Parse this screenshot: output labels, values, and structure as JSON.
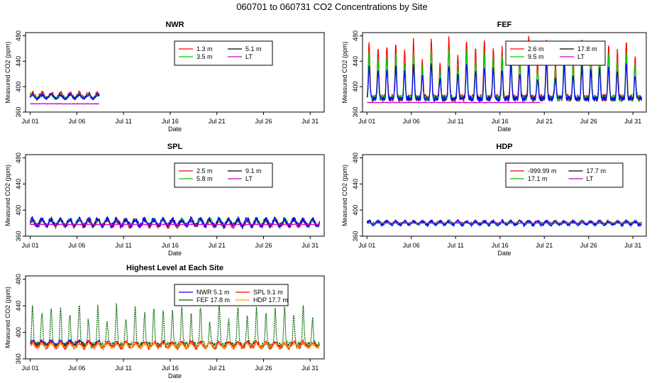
{
  "page_title": "060701  to  060731 CO2 Concentrations by Site",
  "chart_data": [
    {
      "type": "line",
      "title": "NWR",
      "xlabel": "Date",
      "ylabel": "Measured CO2 (ppm)",
      "ylim": [
        360,
        485
      ],
      "yticks": [
        360,
        400,
        440,
        480
      ],
      "x_tick_labels": [
        "Jul 01",
        "Jul 06",
        "Jul 11",
        "Jul 16",
        "Jul 21",
        "Jul 26",
        "Jul 31"
      ],
      "legend": "top-right",
      "legend_entries": [
        {
          "label": "1.3 m",
          "color": "#ff0000"
        },
        {
          "label": "5.1 m",
          "color": "#000000"
        },
        {
          "label": "3.5 m",
          "color": "#00cc00"
        },
        {
          "label": "LT",
          "color": "#cc00cc"
        }
      ],
      "series": [
        {
          "name": "1.3 m",
          "color": "#ff0000",
          "x_range": [
            1,
            8.4
          ],
          "base": 386,
          "amp": 4,
          "noise": 3
        },
        {
          "name": "3.5 m",
          "color": "#00cc00",
          "x_range": [
            1,
            8.4
          ],
          "base": 385,
          "amp": 3,
          "noise": 2
        },
        {
          "name": "5.1 m",
          "color": "#0000ff",
          "x_range": [
            1,
            8.4
          ],
          "base": 384,
          "amp": 3,
          "noise": 2
        },
        {
          "name": "LT",
          "color": "#cc00cc",
          "x_range": [
            1,
            8.4
          ],
          "base": 373,
          "amp": 0,
          "noise": 0.4
        }
      ]
    },
    {
      "type": "line",
      "title": "FEF",
      "xlabel": "Date",
      "ylabel": "Measured CO2 (ppm)",
      "ylim": [
        360,
        485
      ],
      "yticks": [
        360,
        400,
        440,
        480
      ],
      "x_tick_labels": [
        "Jul 01",
        "Jul 06",
        "Jul 11",
        "Jul 16",
        "Jul 21",
        "Jul 26",
        "Jul 31"
      ],
      "legend": "top-right",
      "legend_entries": [
        {
          "label": "2.6 m",
          "color": "#ff0000"
        },
        {
          "label": "17.8 m",
          "color": "#000000"
        },
        {
          "label": "9.5 m",
          "color": "#00cc00"
        },
        {
          "label": "LT",
          "color": "#cc00cc"
        }
      ],
      "series": [
        {
          "name": "2.6 m",
          "color": "#ff0000",
          "x_range": [
            1,
            32
          ],
          "base": 382,
          "amp": 95,
          "noise": 6,
          "diurnal": true
        },
        {
          "name": "9.5 m",
          "color": "#00cc00",
          "x_range": [
            1,
            32
          ],
          "base": 382,
          "amp": 75,
          "noise": 5,
          "diurnal": true
        },
        {
          "name": "17.8 m",
          "color": "#0000ff",
          "x_range": [
            1,
            32
          ],
          "base": 381,
          "amp": 55,
          "noise": 4,
          "diurnal": true
        },
        {
          "name": "LT",
          "color": "#cc00cc",
          "x_range": [
            1,
            20.5
          ],
          "base": 375,
          "amp": 0,
          "noise": 0.4
        }
      ]
    },
    {
      "type": "line",
      "title": "SPL",
      "xlabel": "Date",
      "ylabel": "Measured CO2 (ppm)",
      "ylim": [
        360,
        485
      ],
      "yticks": [
        360,
        400,
        440,
        480
      ],
      "x_tick_labels": [
        "Jul 01",
        "Jul 06",
        "Jul 11",
        "Jul 16",
        "Jul 21",
        "Jul 26",
        "Jul 31"
      ],
      "legend": "top-right",
      "legend_entries": [
        {
          "label": "2.5 m",
          "color": "#ff0000"
        },
        {
          "label": "9.1 m",
          "color": "#000000"
        },
        {
          "label": "5.8 m",
          "color": "#00cc00"
        },
        {
          "label": "LT",
          "color": "#cc00cc"
        }
      ],
      "series": [
        {
          "name": "2.5 m",
          "color": "#ff0000",
          "x_range": [
            1,
            32
          ],
          "base": 380,
          "amp": 5,
          "noise": 4
        },
        {
          "name": "5.8 m",
          "color": "#00cc00",
          "x_range": [
            1,
            32
          ],
          "base": 381,
          "amp": 5,
          "noise": 3
        },
        {
          "name": "9.1 m",
          "color": "#0000ff",
          "x_range": [
            1,
            32
          ],
          "base": 381,
          "amp": 5,
          "noise": 4
        },
        {
          "name": "LT",
          "color": "#cc00cc",
          "x_range": [
            1,
            32
          ],
          "base": 378,
          "amp": 0,
          "noise": 0.4
        }
      ]
    },
    {
      "type": "line",
      "title": "HDP",
      "xlabel": "Date",
      "ylabel": "Measured CO2 (ppm)",
      "ylim": [
        360,
        485
      ],
      "yticks": [
        360,
        400,
        440,
        480
      ],
      "x_tick_labels": [
        "Jul 01",
        "Jul 06",
        "Jul 11",
        "Jul 16",
        "Jul 21",
        "Jul 26",
        "Jul 31"
      ],
      "legend": "top-right",
      "legend_entries": [
        {
          "label": "-999.99 m",
          "color": "#ff0000"
        },
        {
          "label": "17.7 m",
          "color": "#000000"
        },
        {
          "label": "17.1 m",
          "color": "#00cc00"
        },
        {
          "label": "LT",
          "color": "#cc00cc"
        }
      ],
      "series": [
        {
          "name": "17.1 m",
          "color": "#00cc00",
          "x_range": [
            1,
            32
          ],
          "base": 381,
          "amp": 2,
          "noise": 2
        },
        {
          "name": "17.7 m",
          "color": "#0000ff",
          "x_range": [
            1,
            32
          ],
          "base": 380,
          "amp": 3,
          "noise": 2
        },
        {
          "name": "LT",
          "color": "#cc00cc",
          "x_range": [
            1,
            32
          ],
          "base": 380,
          "amp": 0,
          "noise": 0.3
        }
      ]
    },
    {
      "type": "line",
      "title": "Highest Level at Each Site",
      "xlabel": "Date",
      "ylabel": "Measured CO2 (ppm)",
      "ylim": [
        360,
        485
      ],
      "yticks": [
        360,
        400,
        440,
        480
      ],
      "x_tick_labels": [
        "Jul 01",
        "Jul 06",
        "Jul 11",
        "Jul 16",
        "Jul 21",
        "Jul 26",
        "Jul 31"
      ],
      "legend": "top-right",
      "legend_entries": [
        {
          "label": "NWR  5.1 m",
          "color": "#0000ff"
        },
        {
          "label": "SPL  9.1 m",
          "color": "#ff0000"
        },
        {
          "label": "FEF  17.8 m",
          "color": "#006400"
        },
        {
          "label": "HDP  17.7 m",
          "color": "#ffa500"
        }
      ],
      "series": [
        {
          "name": "NWR 5.1 m",
          "color": "#0000ff",
          "x_range": [
            1,
            8.4
          ],
          "base": 384,
          "amp": 3,
          "noise": 2
        },
        {
          "name": "FEF 17.8 m",
          "color": "#006400",
          "x_range": [
            1,
            32
          ],
          "base": 381,
          "amp": 60,
          "noise": 5,
          "diurnal": true,
          "dash": true
        },
        {
          "name": "SPL 9.1 m",
          "color": "#ff0000",
          "x_range": [
            1,
            32
          ],
          "base": 381,
          "amp": 4,
          "noise": 3
        },
        {
          "name": "HDP 17.7 m",
          "color": "#ffa500",
          "x_range": [
            1,
            32
          ],
          "base": 380,
          "amp": 3,
          "noise": 2,
          "dash": true
        }
      ]
    }
  ]
}
